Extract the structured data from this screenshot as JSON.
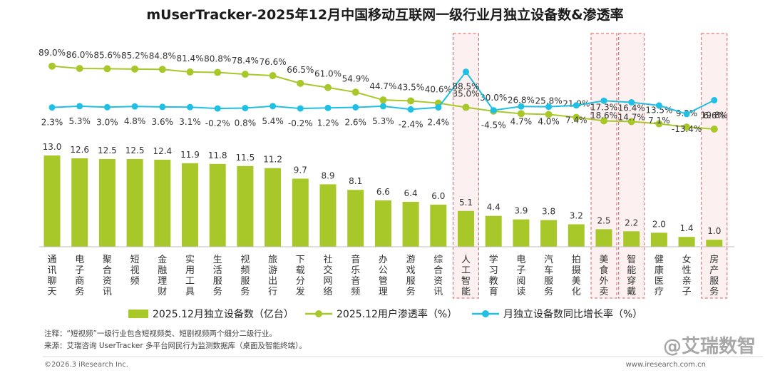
{
  "title": "mUserTracker-2025年12月中国移动互联网一级行业月独立设备数&渗透率",
  "chart_data": {
    "type": "bar",
    "categories": [
      "通讯聊天",
      "电子商务",
      "聚合资讯",
      "短视频",
      "金融理财",
      "实用工具",
      "生活服务",
      "视频服务",
      "旅游出行",
      "下载分发",
      "社交网络",
      "音乐音频",
      "办公管理",
      "游戏服务",
      "综合资讯",
      "人工智能",
      "学习教育",
      "电子阅读",
      "汽车服务",
      "拍摄美化",
      "美食外卖",
      "智能穿戴",
      "健康医疗",
      "女性亲子",
      "房产服务"
    ],
    "series": [
      {
        "name": "2025.12月独立设备数（亿台）",
        "type": "bar",
        "values": [
          13.0,
          12.6,
          12.5,
          12.5,
          12.4,
          11.9,
          11.8,
          11.5,
          11.2,
          9.7,
          8.9,
          8.1,
          6.6,
          6.4,
          6.0,
          5.1,
          4.4,
          3.9,
          3.8,
          3.2,
          2.5,
          2.2,
          2.0,
          1.4,
          1.0
        ],
        "labels": [
          "13.0",
          "12.6",
          "12.5",
          "12.5",
          "12.4",
          "11.9",
          "11.8",
          "11.5",
          "11.2",
          "9.7",
          "8.9",
          "8.1",
          "6.6",
          "6.4",
          "6.0",
          "5.1",
          "4.4",
          "3.9",
          "3.8",
          "3.2",
          "2.5",
          "2.2",
          "2.0",
          "1.4",
          "1.0"
        ]
      },
      {
        "name": "2025.12用户渗透率（%）",
        "type": "line",
        "values": [
          89.0,
          86.0,
          85.6,
          85.2,
          84.8,
          81.4,
          80.8,
          78.4,
          76.6,
          66.5,
          61.0,
          54.9,
          44.7,
          43.5,
          40.6,
          35.0,
          30.0,
          26.8,
          25.8,
          21.9,
          17.3,
          16.4,
          13.5,
          9.2,
          6.6
        ],
        "labels": [
          "89.0%",
          "86.0%",
          "85.6%",
          "85.2%",
          "84.8%",
          "81.4%",
          "80.8%",
          "78.4%",
          "76.6%",
          "66.5%",
          "61.0%",
          "54.9%",
          "44.7%",
          "43.5%",
          "40.6%",
          "35.0%",
          "30.0%",
          "26.8%",
          "25.8%",
          "21.9%",
          "17.3%",
          "16.4%",
          "13.5%",
          "9.2%",
          "6.6%"
        ]
      },
      {
        "name": "月独立设备数同比增长率（%）",
        "type": "line",
        "values": [
          2.3,
          5.3,
          3.0,
          4.8,
          3.6,
          3.1,
          -0.2,
          0.8,
          5.4,
          -0.2,
          1.2,
          2.6,
          5.3,
          -2.4,
          2.4,
          88.5,
          -4.5,
          4.7,
          4.0,
          7.4,
          18.6,
          14.7,
          7.1,
          -13.4,
          19.8
        ],
        "labels": [
          "2.3%",
          "5.3%",
          "3.0%",
          "4.8%",
          "3.6%",
          "3.1%",
          "-0.2%",
          "0.8%",
          "5.4%",
          "-0.2%",
          "1.2%",
          "2.6%",
          "5.3%",
          "-2.4%",
          "2.4%",
          "88.5%",
          "-4.5%",
          "4.7%",
          "4.0%",
          "7.4%",
          "18.6%",
          "14.7%",
          "7.1%",
          "-13.4%",
          "19.8%"
        ]
      }
    ],
    "highlighted_categories": [
      "人工智能",
      "美食外卖",
      "智能穿戴",
      "房产服务"
    ],
    "legend_position": "bottom",
    "colors": {
      "bar": "#a8c82a",
      "penetration": "#a8c82a",
      "growth": "#1ec0e6",
      "highlight_border": "#e05a5a",
      "highlight_fill": "#fdf0f0"
    }
  },
  "notes": {
    "note": "注释：“短视频”一级行业包含短视频类、短剧视频两个细分二级行业。",
    "source": "来源：艾瑞咨询 UserTracker 多平台网民行为监测数据库（桌面及智能终端）。"
  },
  "footer": {
    "copyright": "©2026.3 iResearch Inc.",
    "website": "www.iresearch.com.cn",
    "watermark": "@艾瑞数智"
  }
}
